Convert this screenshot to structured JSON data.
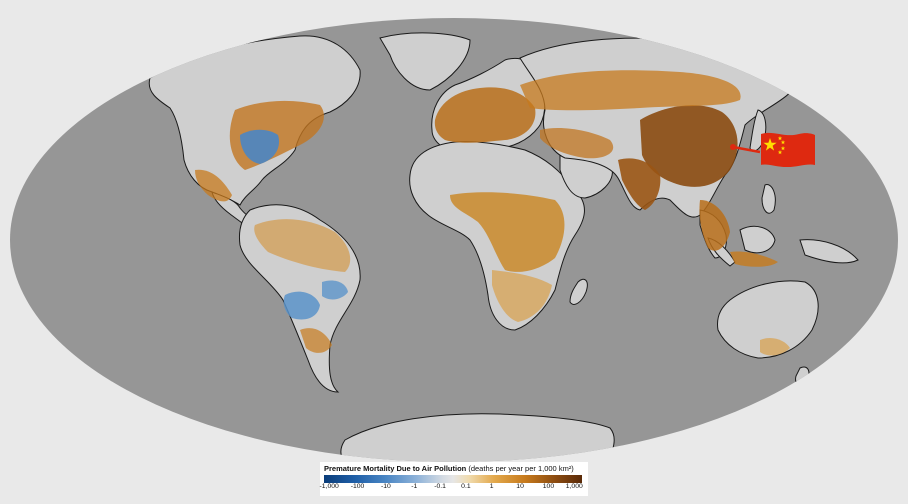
{
  "legend": {
    "title": "Premature Mortality Due to Air Pollution",
    "units": "(deaths per year per 1,000 km²)",
    "ticks": [
      "-1,000",
      "-100",
      "-10",
      "-1",
      "-0.1",
      "0.1",
      "1",
      "10",
      "100",
      "1,000"
    ]
  },
  "colors": {
    "ocean": "#969696",
    "land": "#cfcfcf",
    "high": "#8a4a10",
    "medium": "#c77a1c",
    "low": "#e3a94c",
    "negative": "#4a86c4",
    "flag_red": "#de2910",
    "flag_star": "#ffde00"
  },
  "marker": {
    "icon": "china-flag-icon",
    "target": "China"
  }
}
